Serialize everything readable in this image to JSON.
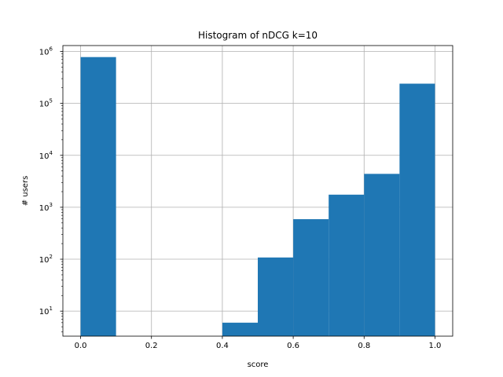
{
  "chart_data": {
    "type": "bar",
    "title": "Histogram of nDCG k=10",
    "xlabel": "score",
    "ylabel": "# users",
    "xlim": [
      -0.05,
      1.05
    ],
    "ylim": [
      3.3,
      1300000
    ],
    "yscale": "log",
    "grid": true,
    "bins": [
      {
        "x0": 0.0,
        "x1": 0.1,
        "count": 780000
      },
      {
        "x0": 0.1,
        "x1": 0.2,
        "count": 0
      },
      {
        "x0": 0.2,
        "x1": 0.3,
        "count": 0
      },
      {
        "x0": 0.3,
        "x1": 0.4,
        "count": 0
      },
      {
        "x0": 0.4,
        "x1": 0.5,
        "count": 6
      },
      {
        "x0": 0.5,
        "x1": 0.6,
        "count": 108
      },
      {
        "x0": 0.6,
        "x1": 0.7,
        "count": 590
      },
      {
        "x0": 0.7,
        "x1": 0.8,
        "count": 1750
      },
      {
        "x0": 0.8,
        "x1": 0.9,
        "count": 4400
      },
      {
        "x0": 0.9,
        "x1": 1.0,
        "count": 240000
      }
    ],
    "x_ticks": [
      {
        "value": 0.0,
        "label": "0.0"
      },
      {
        "value": 0.2,
        "label": "0.2"
      },
      {
        "value": 0.4,
        "label": "0.4"
      },
      {
        "value": 0.6,
        "label": "0.6"
      },
      {
        "value": 0.8,
        "label": "0.8"
      },
      {
        "value": 1.0,
        "label": "1.0"
      }
    ],
    "y_ticks": [
      {
        "value": 10,
        "label_base": "10",
        "label_exp": "1"
      },
      {
        "value": 100,
        "label_base": "10",
        "label_exp": "2"
      },
      {
        "value": 1000,
        "label_base": "10",
        "label_exp": "3"
      },
      {
        "value": 10000,
        "label_base": "10",
        "label_exp": "4"
      },
      {
        "value": 100000,
        "label_base": "10",
        "label_exp": "5"
      },
      {
        "value": 1000000,
        "label_base": "10",
        "label_exp": "6"
      }
    ],
    "bar_color": "#1f77b4",
    "grid_color": "#b0b0b0"
  }
}
